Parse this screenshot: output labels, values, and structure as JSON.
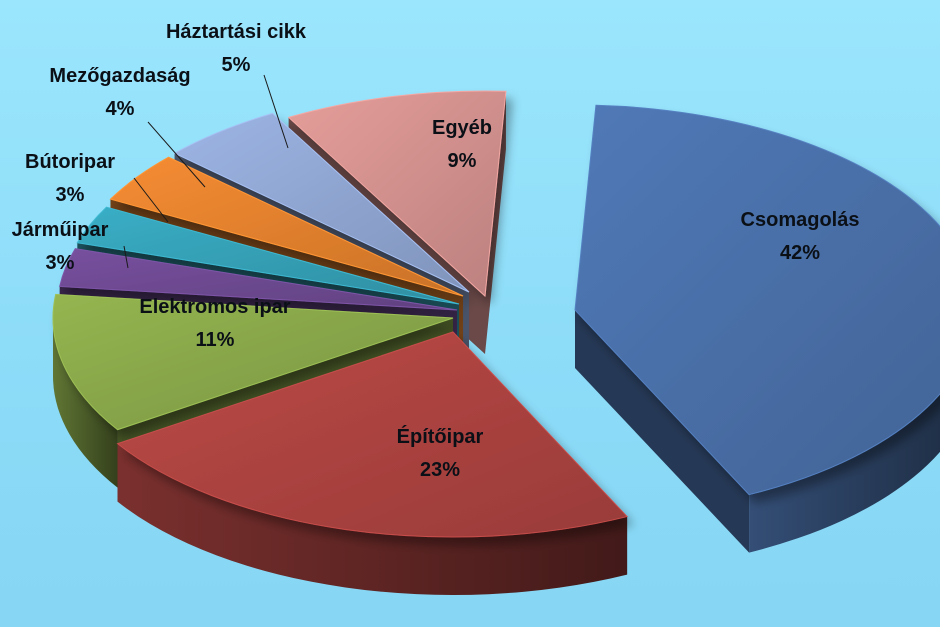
{
  "chart_data": {
    "type": "pie",
    "style": "3d-exploded",
    "slices": [
      {
        "label": "Csomagolás",
        "value": 42,
        "pct": "42%",
        "color": "#4a70a9"
      },
      {
        "label": "Építőipar",
        "value": 23,
        "pct": "23%",
        "color": "#ae4441"
      },
      {
        "label": "Elektromos ipar",
        "value": 11,
        "pct": "11%",
        "color": "#89a84a"
      },
      {
        "label": "Járműipar",
        "value": 3,
        "pct": "3%",
        "color": "#6e4a92"
      },
      {
        "label": "Bútoripar",
        "value": 3,
        "pct": "3%",
        "color": "#35a1b7"
      },
      {
        "label": "Mezőgazdaság",
        "value": 4,
        "pct": "4%",
        "color": "#e4822e"
      },
      {
        "label": "Háztartási cikk",
        "value": 5,
        "pct": "5%",
        "color": "#91a8d4"
      },
      {
        "label": "Egyéb",
        "value": 9,
        "pct": "9%",
        "color": "#d4928f"
      }
    ],
    "legend": "none",
    "background": "#8fe0fb"
  }
}
